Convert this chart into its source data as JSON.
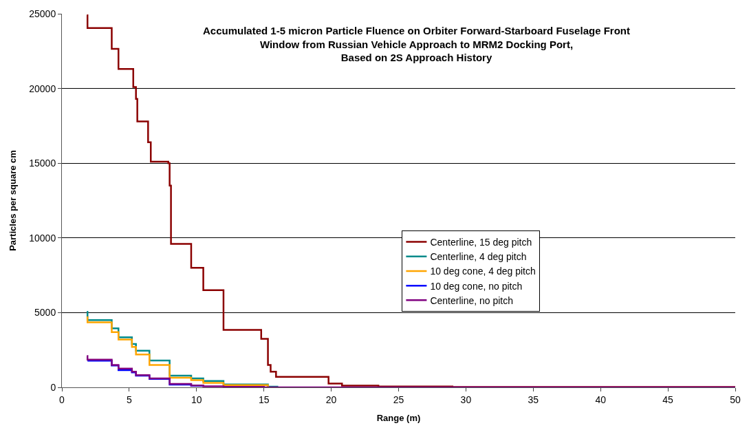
{
  "chart_data": {
    "type": "step",
    "title": "Accumulated 1-5 micron Particle Fluence on Orbiter Forward-Starboard Fuselage Front\nWindow from Russian Vehicle Approach to MRM2 Docking Port,\nBased on 2S Approach History",
    "xlabel": "Range (m)",
    "ylabel": "Particles per square cm",
    "xlim": [
      0,
      50
    ],
    "ylim": [
      0,
      25000
    ],
    "xticks": [
      0,
      5,
      10,
      15,
      20,
      25,
      30,
      35,
      40,
      45,
      50
    ],
    "yticks": [
      0,
      5000,
      10000,
      15000,
      20000,
      25000
    ],
    "grid": "y",
    "legend": "right",
    "marker": "none",
    "line_style": "solid",
    "series": [
      {
        "name": "Centerline, 15 deg pitch",
        "color": "#8b0000",
        "x": [
          1.85,
          1.9,
          3.7,
          4.2,
          5.3,
          5.5,
          5.6,
          6.4,
          6.6,
          7.9,
          8.0,
          8.1,
          9.6,
          10.5,
          12.0,
          14.8,
          15.3,
          15.5,
          15.9,
          19.8,
          20.8,
          23.5,
          29,
          50
        ],
        "values": [
          24900,
          24050,
          22650,
          21300,
          20100,
          19300,
          17800,
          16400,
          15100,
          15000,
          13500,
          9600,
          8000,
          6500,
          3850,
          3250,
          1500,
          1050,
          700,
          250,
          120,
          60,
          20,
          0
        ]
      },
      {
        "name": "Centerline, 4 deg pitch",
        "color": "#008b8b",
        "x": [
          1.85,
          1.9,
          3.7,
          4.2,
          5.2,
          5.5,
          6.5,
          8.0,
          9.6,
          10.5,
          12.0,
          15.3,
          16
        ],
        "values": [
          5050,
          4500,
          3950,
          3350,
          2900,
          2450,
          1800,
          780,
          600,
          430,
          200,
          50,
          0
        ]
      },
      {
        "name": "10 deg cone, 4 deg pitch",
        "color": "#ffa500",
        "x": [
          1.85,
          1.9,
          3.7,
          4.2,
          5.2,
          5.5,
          6.5,
          8.0,
          9.6,
          10.5,
          12.0,
          15.3
        ],
        "values": [
          4700,
          4350,
          3700,
          3200,
          2700,
          2200,
          1500,
          650,
          480,
          300,
          150,
          20
        ]
      },
      {
        "name": "10 deg cone, no pitch",
        "color": "#0000ff",
        "x": [
          1.9,
          3.7,
          4.2,
          5.2,
          5.5,
          6.5,
          8.0,
          9.6,
          10.5
        ],
        "values": [
          1780,
          1460,
          1150,
          1000,
          780,
          560,
          180,
          100,
          50
        ]
      },
      {
        "name": "Centerline, no pitch",
        "color": "#800080",
        "x": [
          1.85,
          1.9,
          3.7,
          4.2,
          5.2,
          5.5,
          6.5,
          8.0,
          9.6,
          10.5,
          12.0,
          15,
          50
        ],
        "values": [
          2100,
          1850,
          1500,
          1250,
          1050,
          820,
          600,
          230,
          130,
          70,
          30,
          0,
          0
        ]
      }
    ]
  }
}
